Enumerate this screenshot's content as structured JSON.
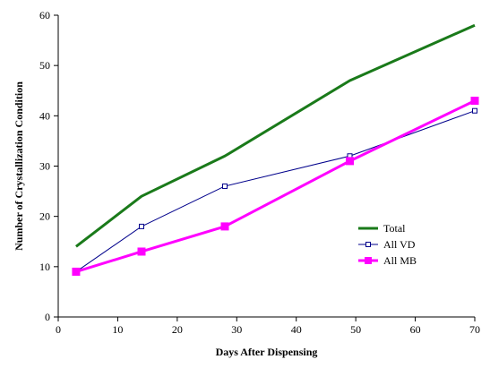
{
  "chart_data": {
    "type": "line",
    "xlabel": "Days After Dispensing",
    "ylabel": "Number of Crystallization Condition",
    "xlim": [
      0,
      70
    ],
    "ylim": [
      0,
      60
    ],
    "xticks": [
      "0",
      "10",
      "20",
      "30",
      "40",
      "50",
      "60",
      "70"
    ],
    "yticks": [
      "0",
      "10",
      "20",
      "30",
      "40",
      "50",
      "60"
    ],
    "grid": false,
    "legend_position": "right",
    "series": [
      {
        "name": "Total",
        "color": "#1a7a1a",
        "marker": "none",
        "x": [
          3,
          14,
          28,
          49,
          70
        ],
        "y": [
          14,
          24,
          32,
          47,
          58
        ]
      },
      {
        "name": "All VD",
        "color": "#00008b",
        "marker": "open-square",
        "x": [
          3,
          14,
          28,
          49,
          70
        ],
        "y": [
          9,
          18,
          26,
          32,
          41
        ]
      },
      {
        "name": "All MB",
        "color": "#ff00ff",
        "marker": "filled-square",
        "x": [
          3,
          14,
          28,
          49,
          70
        ],
        "y": [
          9,
          13,
          18,
          31,
          43
        ]
      }
    ]
  }
}
